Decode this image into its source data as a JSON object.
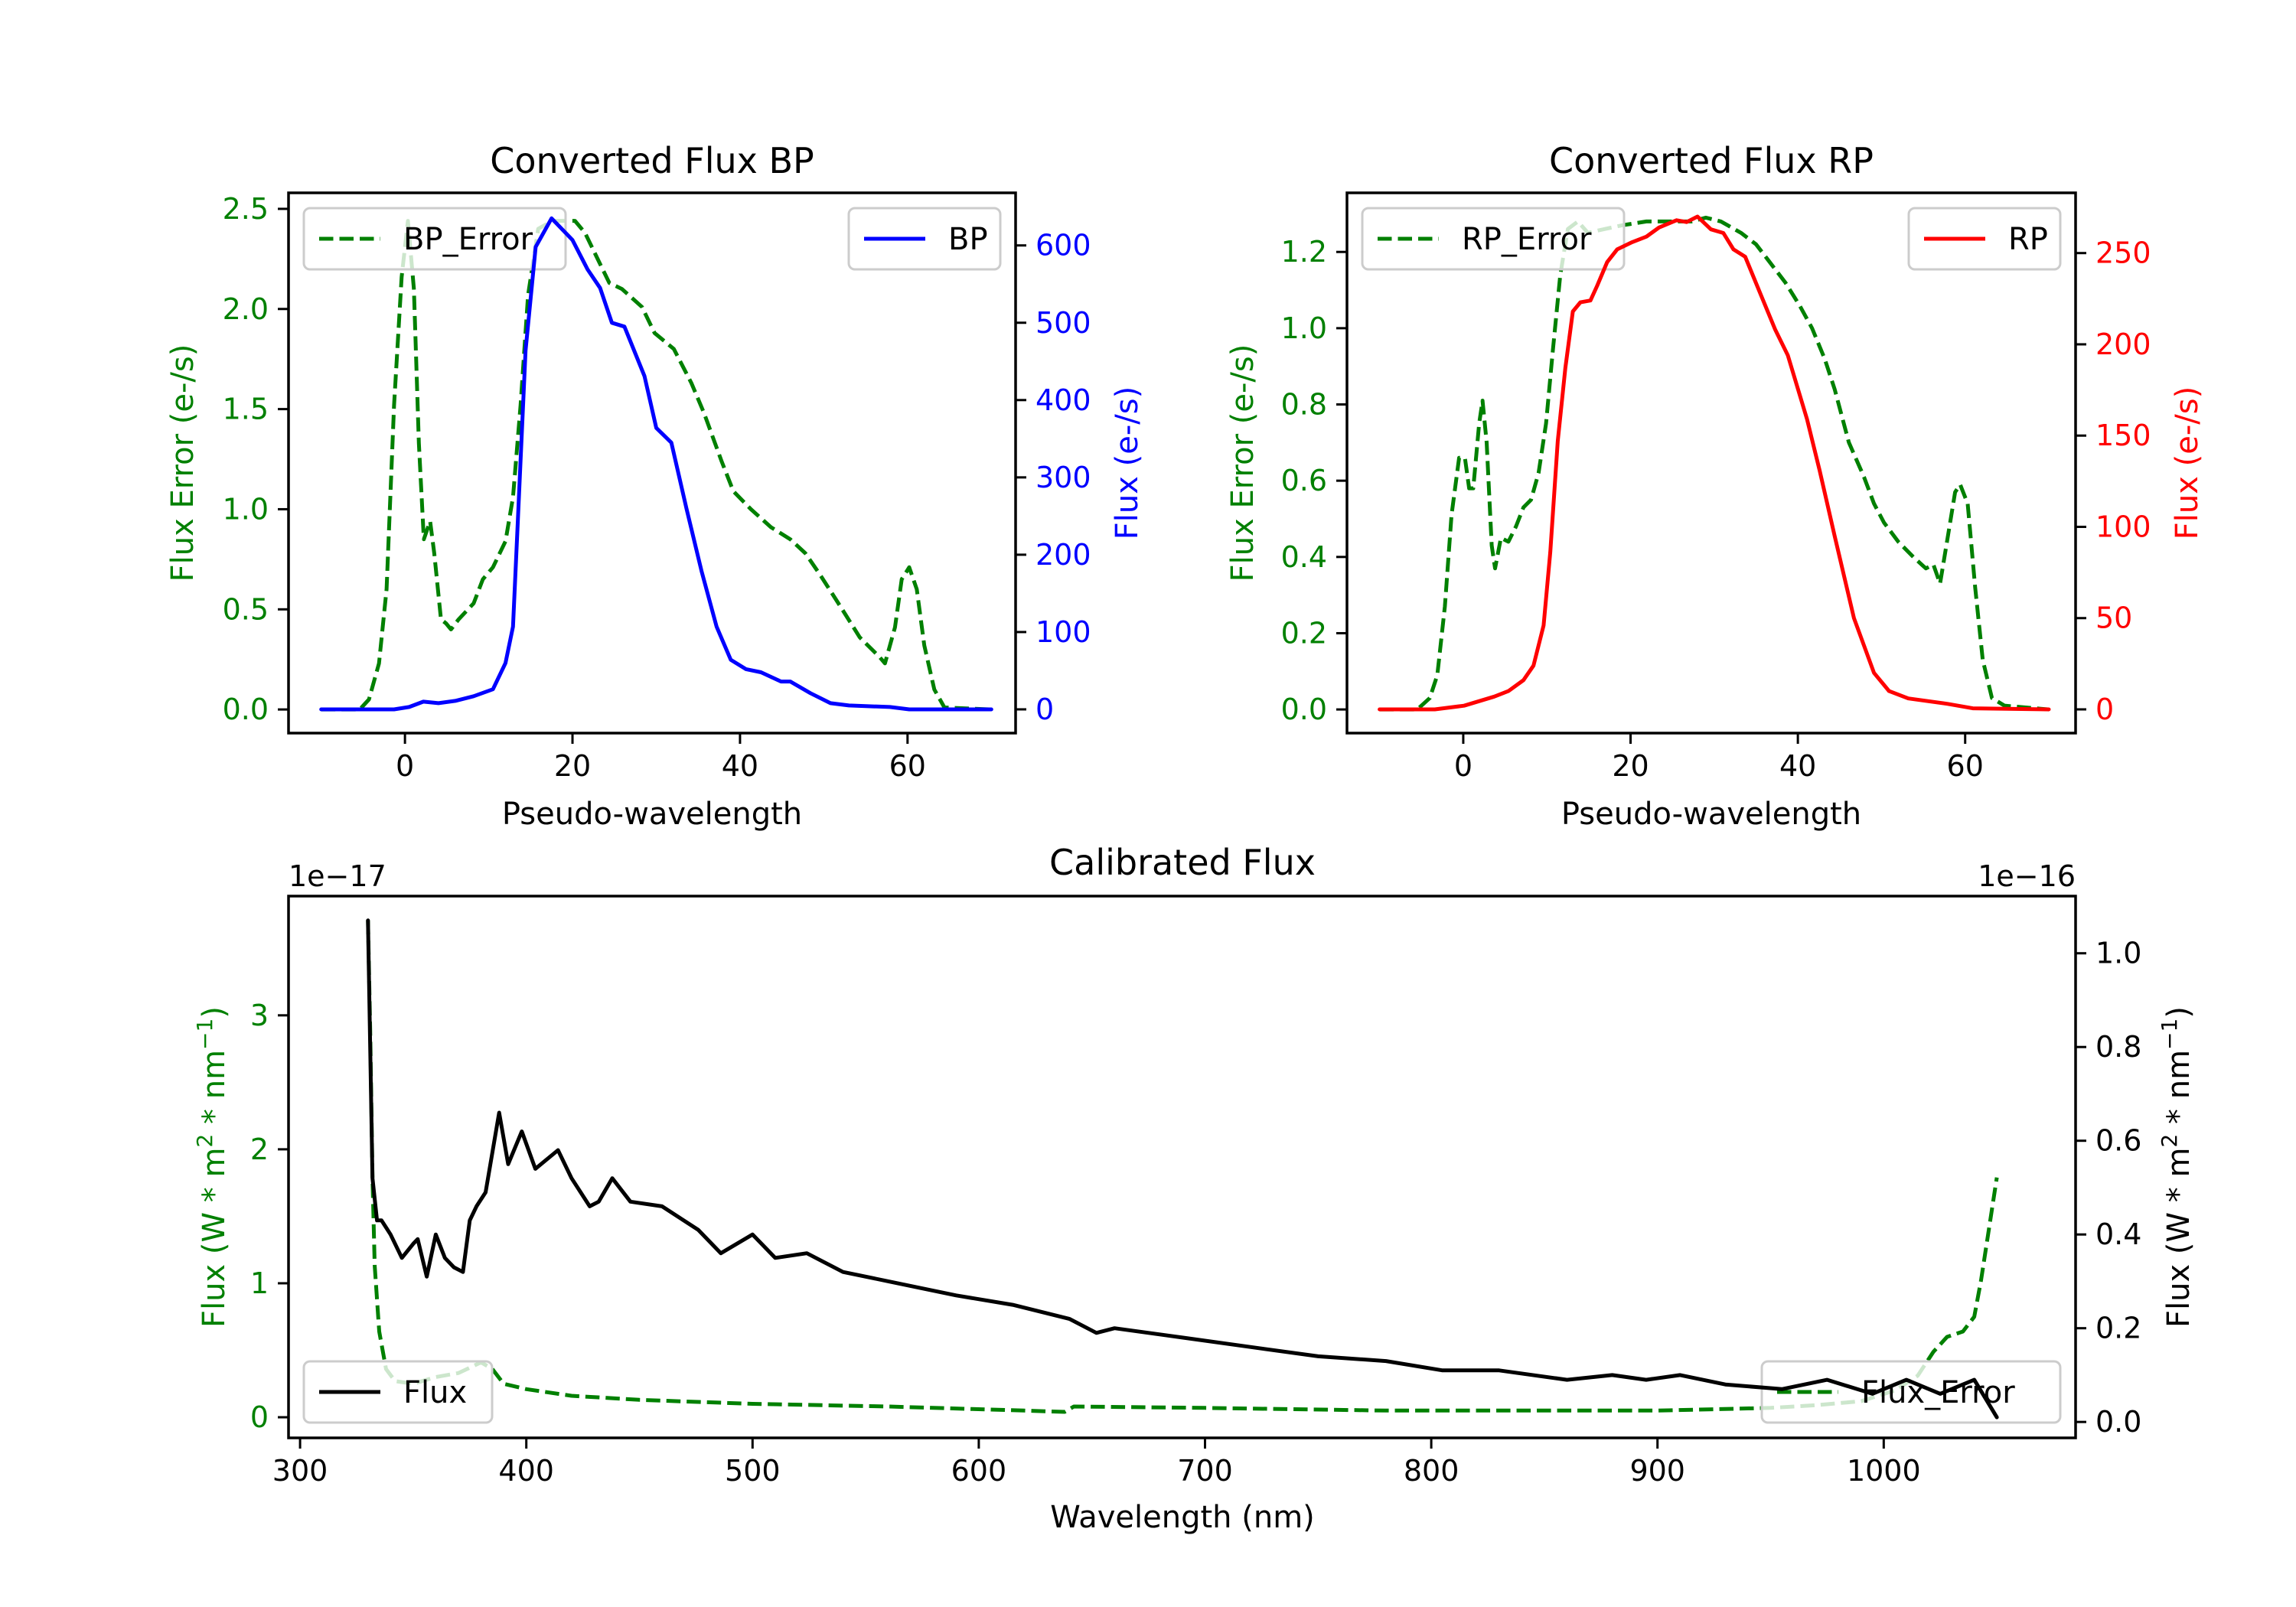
{
  "figure": {
    "background": "#ffffff"
  },
  "colors": {
    "error": "#008000",
    "bp": "#0000ff",
    "rp": "#ff0000",
    "flux": "#000000",
    "axes": "#000000",
    "legend_frame": "#cccccc"
  },
  "chart_data": [
    {
      "id": "bp",
      "type": "line",
      "title": "Converted Flux BP",
      "xlabel": "Pseudo-wavelength",
      "xlim": [
        -13.9,
        72.9
      ],
      "xticks": [
        0,
        20,
        40,
        60
      ],
      "xtick_labels": [
        "0",
        "20",
        "40",
        "60"
      ],
      "grid": false,
      "left_axis": {
        "label": "Flux Error (e-/s)",
        "color": "#008000",
        "ylim": [
          -0.118,
          2.58
        ],
        "ticks": [
          0.0,
          0.5,
          1.0,
          1.5,
          2.0,
          2.5
        ],
        "tick_labels": [
          "0.0",
          "0.5",
          "1.0",
          "1.5",
          "2.0",
          "2.5"
        ]
      },
      "right_axis": {
        "label": "Flux (e-/s)",
        "color": "#0000ff",
        "ylim": [
          -30.7,
          668
        ],
        "ticks": [
          0,
          100,
          200,
          300,
          400,
          500,
          600
        ],
        "tick_labels": [
          "0",
          "100",
          "200",
          "300",
          "400",
          "500",
          "600"
        ]
      },
      "series": [
        {
          "name": "BP_Error",
          "axis": "left",
          "style": "dashed",
          "color": "#008000",
          "legend": "upper-left",
          "x": [
            -10,
            -5.4,
            -4.3,
            -3.1,
            -2.2,
            -1.3,
            -0.4,
            0.35,
            1.07,
            1.66,
            2.25,
            3.0,
            3.5,
            4.3,
            4.9,
            5.5,
            6.4,
            8.2,
            9.3,
            10.5,
            12.0,
            12.9,
            13.8,
            14.7,
            15.9,
            17.6,
            20.3,
            21.5,
            23.0,
            24.4,
            25.9,
            28.3,
            29.8,
            32.1,
            34.2,
            35.7,
            37.8,
            39.2,
            41.3,
            43.7,
            46.0,
            47.8,
            49.6,
            51.9,
            54.3,
            56.7,
            57.3,
            58.5,
            59.3,
            60.2,
            61.1,
            62.0,
            63.2,
            64.4,
            70
          ],
          "y": [
            0,
            0.0,
            0.05,
            0.23,
            0.6,
            1.52,
            2.16,
            2.44,
            2.1,
            1.33,
            0.85,
            0.94,
            0.78,
            0.45,
            0.43,
            0.4,
            0.45,
            0.53,
            0.65,
            0.71,
            0.84,
            1.06,
            1.52,
            2.07,
            2.4,
            2.44,
            2.44,
            2.38,
            2.25,
            2.13,
            2.1,
            2.01,
            1.88,
            1.8,
            1.63,
            1.48,
            1.24,
            1.09,
            1.0,
            0.91,
            0.85,
            0.78,
            0.67,
            0.52,
            0.36,
            0.26,
            0.23,
            0.41,
            0.65,
            0.71,
            0.6,
            0.32,
            0.1,
            0.01,
            0
          ]
        },
        {
          "name": "BP",
          "axis": "right",
          "style": "solid",
          "color": "#0000ff",
          "legend": "upper-right",
          "x": [
            -10,
            -1.3,
            0.5,
            2.2,
            4.0,
            6.0,
            8.2,
            10.5,
            12.0,
            12.9,
            13.5,
            14.4,
            15.6,
            17.5,
            20.0,
            21.8,
            23.3,
            24.7,
            26.2,
            28.6,
            30.0,
            31.8,
            33.6,
            35.4,
            37.2,
            38.9,
            40.7,
            42.5,
            44.9,
            46.0,
            48.4,
            50.8,
            53.0,
            57.9,
            60.2,
            70
          ],
          "y": [
            0,
            0,
            3,
            10,
            8,
            11,
            17,
            26,
            60,
            107,
            250,
            464,
            598,
            635,
            607,
            569,
            545,
            500,
            495,
            431,
            364,
            345,
            260,
            179,
            107,
            64,
            52,
            48,
            36,
            36,
            21,
            8,
            5,
            3,
            0,
            0
          ]
        }
      ]
    },
    {
      "id": "rp",
      "type": "line",
      "title": "Converted Flux RP",
      "xlabel": "Pseudo-wavelength",
      "xlim": [
        -13.9,
        73.2
      ],
      "xticks": [
        0,
        20,
        40,
        60
      ],
      "xtick_labels": [
        "0",
        "20",
        "40",
        "60"
      ],
      "grid": false,
      "left_axis": {
        "label": "Flux Error (e-/s)",
        "color": "#008000",
        "ylim": [
          -0.062,
          1.355
        ],
        "ticks": [
          0.0,
          0.2,
          0.4,
          0.6,
          0.8,
          1.0,
          1.2
        ],
        "tick_labels": [
          "0.0",
          "0.2",
          "0.4",
          "0.6",
          "0.8",
          "1.0",
          "1.2"
        ]
      },
      "right_axis": {
        "label": "Flux (e-/s)",
        "color": "#ff0000",
        "ylim": [
          -13,
          283
        ],
        "ticks": [
          0,
          50,
          100,
          150,
          200,
          250
        ],
        "tick_labels": [
          "0",
          "50",
          "100",
          "150",
          "200",
          "250"
        ]
      },
      "series": [
        {
          "name": "RP_Error",
          "axis": "left",
          "style": "dashed",
          "color": "#008000",
          "legend": "upper-left",
          "x": [
            -10,
            -5.5,
            -4.0,
            -3.1,
            -2.2,
            -1.4,
            -0.5,
            0.2,
            0.7,
            1.2,
            1.9,
            2.3,
            2.8,
            3.4,
            3.8,
            4.5,
            5.4,
            6.3,
            7.2,
            8.1,
            9.0,
            9.9,
            10.7,
            11.6,
            12.5,
            13.7,
            14.9,
            16.9,
            19.0,
            21.9,
            24.9,
            27.3,
            29.0,
            30.8,
            33.2,
            35.0,
            36.4,
            38.5,
            40.2,
            41.7,
            43.2,
            44.4,
            46.1,
            47.9,
            49.1,
            50.3,
            52.0,
            53.8,
            55.3,
            56.2,
            57.0,
            57.9,
            58.8,
            59.4,
            60.3,
            61.2,
            62.1,
            63.2,
            64.7,
            70
          ],
          "y": [
            0,
            0,
            0.03,
            0.09,
            0.27,
            0.51,
            0.66,
            0.66,
            0.58,
            0.58,
            0.75,
            0.81,
            0.7,
            0.43,
            0.37,
            0.45,
            0.44,
            0.48,
            0.53,
            0.55,
            0.62,
            0.75,
            0.94,
            1.14,
            1.26,
            1.28,
            1.25,
            1.26,
            1.27,
            1.28,
            1.28,
            1.28,
            1.29,
            1.28,
            1.25,
            1.22,
            1.18,
            1.12,
            1.06,
            1.0,
            0.92,
            0.84,
            0.7,
            0.61,
            0.54,
            0.49,
            0.44,
            0.4,
            0.37,
            0.38,
            0.33,
            0.45,
            0.57,
            0.59,
            0.54,
            0.32,
            0.13,
            0.03,
            0.01,
            0
          ]
        },
        {
          "name": "RP",
          "axis": "right",
          "style": "solid",
          "color": "#ff0000",
          "legend": "upper-right",
          "x": [
            -10,
            -3.4,
            0.1,
            3.7,
            5.4,
            7.2,
            8.4,
            9.6,
            10.4,
            11.3,
            12.2,
            13.1,
            14.0,
            15.2,
            16.0,
            17.2,
            18.4,
            20.2,
            21.9,
            23.4,
            25.5,
            26.7,
            28.0,
            29.6,
            31.1,
            32.3,
            33.7,
            35.5,
            37.3,
            38.8,
            41.1,
            42.6,
            44.4,
            46.7,
            49.1,
            50.9,
            53.2,
            57.9,
            60.9,
            70
          ],
          "y": [
            0,
            0,
            2,
            7,
            10,
            16,
            24,
            46,
            86,
            147,
            187,
            218,
            223,
            224,
            232,
            245,
            252,
            256,
            259,
            264,
            268,
            267,
            270,
            263,
            261,
            252,
            248,
            228,
            208,
            194,
            159,
            131,
            95,
            50,
            20,
            10,
            6,
            3,
            0.6,
            0
          ]
        }
      ]
    },
    {
      "id": "calibrated",
      "type": "line",
      "title": "Calibrated Flux",
      "xlabel": "Wavelength (nm)",
      "xlim": [
        294.9,
        1084.8
      ],
      "xticks": [
        300,
        400,
        500,
        600,
        700,
        800,
        900,
        1000
      ],
      "xtick_labels": [
        "300",
        "400",
        "500",
        "600",
        "700",
        "800",
        "900",
        "1000"
      ],
      "grid": false,
      "left_axis": {
        "label": "Flux (W * m² * nm⁻¹)",
        "label_base": "Flux (W * m",
        "label_sup1": "2",
        "label_mid": " * nm",
        "label_sup2": "−1",
        "label_end": ")",
        "color": "#008000",
        "offset_text": "1e−17",
        "ylim": [
          -0.154,
          3.89
        ],
        "ticks": [
          0,
          1,
          2,
          3
        ],
        "tick_labels": [
          "0",
          "1",
          "2",
          "3"
        ]
      },
      "right_axis": {
        "label": "Flux (W * m² * nm⁻¹)",
        "label_base": "Flux (W * m",
        "label_sup1": "2",
        "label_mid": " * nm",
        "label_sup2": "−1",
        "label_end": ")",
        "color": "#000000",
        "offset_text": "1e−16",
        "ylim": [
          -0.034,
          1.122
        ],
        "ticks": [
          0.0,
          0.2,
          0.4,
          0.6,
          0.8,
          1.0
        ],
        "tick_labels": [
          "0.0",
          "0.2",
          "0.4",
          "0.6",
          "0.8",
          "1.0"
        ]
      },
      "series": [
        {
          "name": "Flux_Error",
          "axis": "left",
          "style": "dashed",
          "color": "#008000",
          "legend": "lower-right",
          "x": [
            330,
            331,
            332,
            333,
            335,
            338,
            342,
            350,
            360,
            370,
            380,
            385,
            390,
            400,
            420,
            450,
            500,
            560,
            620,
            638,
            642,
            700,
            780,
            850,
            900,
            950,
            970,
            990,
            1005,
            1015,
            1022,
            1028,
            1035,
            1040,
            1043,
            1046,
            1050
          ],
          "y": [
            3.71,
            2.89,
            1.79,
            1.13,
            0.64,
            0.36,
            0.27,
            0.25,
            0.3,
            0.33,
            0.41,
            0.36,
            0.25,
            0.21,
            0.16,
            0.13,
            0.1,
            0.08,
            0.05,
            0.04,
            0.08,
            0.07,
            0.05,
            0.05,
            0.05,
            0.07,
            0.09,
            0.12,
            0.2,
            0.31,
            0.49,
            0.6,
            0.64,
            0.75,
            1.02,
            1.35,
            1.79
          ]
        },
        {
          "name": "Flux",
          "axis": "right",
          "style": "solid",
          "color": "#000000",
          "legend": "lower-left",
          "x": [
            330,
            332,
            334,
            336,
            340,
            345,
            350,
            352,
            356,
            360,
            364,
            368,
            372,
            375,
            378,
            382,
            388,
            392,
            398,
            404,
            414,
            420,
            428,
            432,
            438,
            446,
            460,
            476,
            486,
            500,
            510,
            524,
            540,
            560,
            590,
            615,
            640,
            652,
            660,
            690,
            720,
            750,
            780,
            805,
            830,
            860,
            880,
            895,
            910,
            930,
            955,
            975,
            995,
            1010,
            1025,
            1040,
            1050
          ],
          "y": [
            1.07,
            0.52,
            0.43,
            0.43,
            0.4,
            0.35,
            0.38,
            0.39,
            0.31,
            0.4,
            0.35,
            0.33,
            0.32,
            0.43,
            0.46,
            0.49,
            0.66,
            0.55,
            0.62,
            0.54,
            0.58,
            0.52,
            0.46,
            0.47,
            0.52,
            0.47,
            0.46,
            0.41,
            0.36,
            0.4,
            0.35,
            0.36,
            0.32,
            0.3,
            0.27,
            0.25,
            0.22,
            0.19,
            0.2,
            0.18,
            0.16,
            0.14,
            0.13,
            0.11,
            0.11,
            0.09,
            0.1,
            0.09,
            0.1,
            0.08,
            0.07,
            0.09,
            0.06,
            0.09,
            0.06,
            0.09,
            0.01
          ]
        }
      ]
    }
  ]
}
